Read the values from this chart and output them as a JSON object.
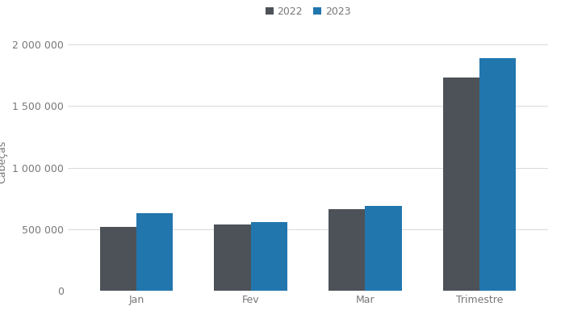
{
  "categories": [
    "Jan",
    "Fev",
    "Mar",
    "Trimestre"
  ],
  "values_2022": [
    520000,
    540000,
    660000,
    1730000
  ],
  "values_2023": [
    630000,
    560000,
    690000,
    1890000
  ],
  "color_2022": "#4d5258",
  "color_2023": "#2176ae",
  "ylabel": "Cabeças",
  "ylim": [
    0,
    2100000
  ],
  "yticks": [
    0,
    500000,
    1000000,
    1500000,
    2000000
  ],
  "ytick_labels": [
    "0",
    "500 000",
    "1 000 000",
    "1 500 000",
    "2 000 000"
  ],
  "legend_labels": [
    "2022",
    "2023"
  ],
  "bar_width": 0.32,
  "background_color": "#ffffff",
  "grid_color": "#d8d8d8",
  "tick_color": "#777777",
  "label_fontsize": 9,
  "legend_fontsize": 9
}
